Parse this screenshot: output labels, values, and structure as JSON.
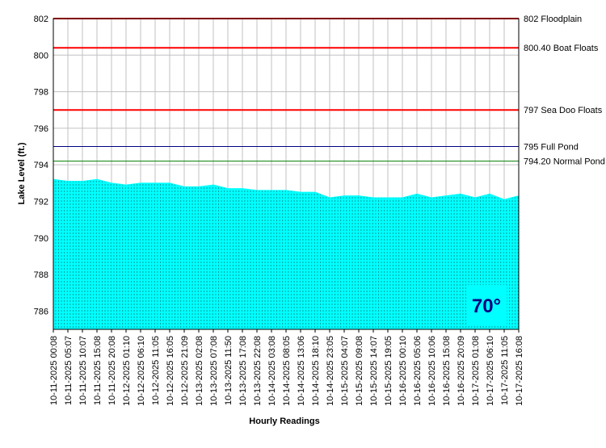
{
  "chart_data": {
    "type": "area",
    "y_label": "Lake Level (ft.)",
    "x_label": "Hourly Readings",
    "annotation": "70°",
    "categories": [
      "10-11-2025 00:08",
      "10-11-2025 05:07",
      "10-11-2025 10:07",
      "10-11-2025 15:08",
      "10-11-2025 20:08",
      "10-12-2025 01:10",
      "10-12-2025 06:10",
      "10-12-2025 11:05",
      "10-12-2025 16:05",
      "10-12-2025 21:09",
      "10-13-2025 02:08",
      "10-13-2025 07:08",
      "10-13-2025 11:50",
      "10-13-2025 17:08",
      "10-13-2025 22:08",
      "10-14-2025 03:08",
      "10-14-2025 08:05",
      "10-14-2025 13:06",
      "10-14-2025 18:10",
      "10-14-2025 23:05",
      "10-15-2025 04:07",
      "10-15-2025 09:08",
      "10-15-2025 14:07",
      "10-15-2025 19:05",
      "10-16-2025 00:10",
      "10-16-2025 05:06",
      "10-16-2025 10:06",
      "10-16-2025 15:08",
      "10-16-2025 20:09",
      "10-17-2025 01:08",
      "10-17-2025 06:10",
      "10-17-2025 11:05",
      "10-17-2025 16:08"
    ],
    "values": [
      793.2,
      793.1,
      793.1,
      793.2,
      793.0,
      792.9,
      793.0,
      793.0,
      793.0,
      792.8,
      792.8,
      792.9,
      792.7,
      792.7,
      792.6,
      792.6,
      792.6,
      792.5,
      792.5,
      792.2,
      792.3,
      792.3,
      792.2,
      792.2,
      792.2,
      792.4,
      792.2,
      792.3,
      792.4,
      792.2,
      792.4,
      792.1,
      792.3
    ],
    "color": "#00ffff",
    "ylim": [
      785,
      802
    ],
    "yticks": [
      786,
      788,
      790,
      792,
      794,
      796,
      798,
      800,
      802
    ],
    "grid": true,
    "reference_lines": [
      {
        "value": 802,
        "label": "802 Floodplain",
        "color": "#ff0000"
      },
      {
        "value": 800.4,
        "label": "800.40 Boat Floats",
        "color": "#ff0000"
      },
      {
        "value": 797,
        "label": "797 Sea Doo Floats",
        "color": "#ff0000"
      },
      {
        "value": 795,
        "label": "795 Full Pond",
        "color": "#000080"
      },
      {
        "value": 794.2,
        "label": "794.20 Normal Pond",
        "color": "#008000"
      }
    ]
  }
}
